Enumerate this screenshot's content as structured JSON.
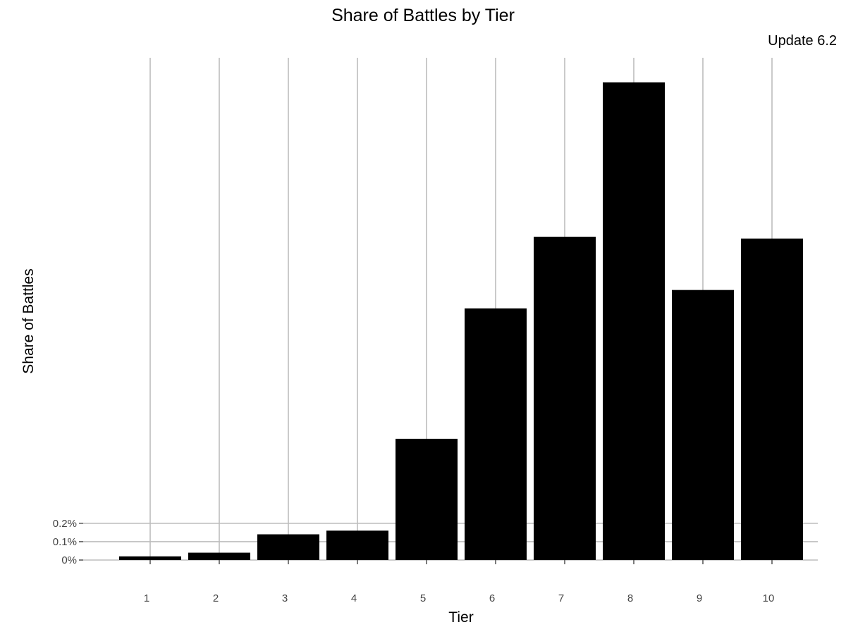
{
  "chart_data": {
    "type": "bar",
    "title": "Share of Battles by Tier",
    "subtitle": "Update 6.2",
    "xlabel": "Tier",
    "ylabel": "Share of Battles",
    "categories": [
      "1",
      "2",
      "3",
      "4",
      "5",
      "6",
      "7",
      "8",
      "9",
      "10"
    ],
    "values": [
      0.0002,
      0.0004,
      0.0014,
      0.0016,
      0.0066,
      0.0137,
      0.0176,
      0.026,
      0.0147,
      0.0175
    ],
    "y_ticks": [
      0,
      0.001,
      0.002
    ],
    "y_tick_labels": [
      "0%",
      "0.1%",
      "0.2%"
    ],
    "ylim": [
      0,
      0.026
    ],
    "bar_color": "#000000",
    "grid_color": "#bdbdbd",
    "grid": true,
    "legend": "none"
  }
}
